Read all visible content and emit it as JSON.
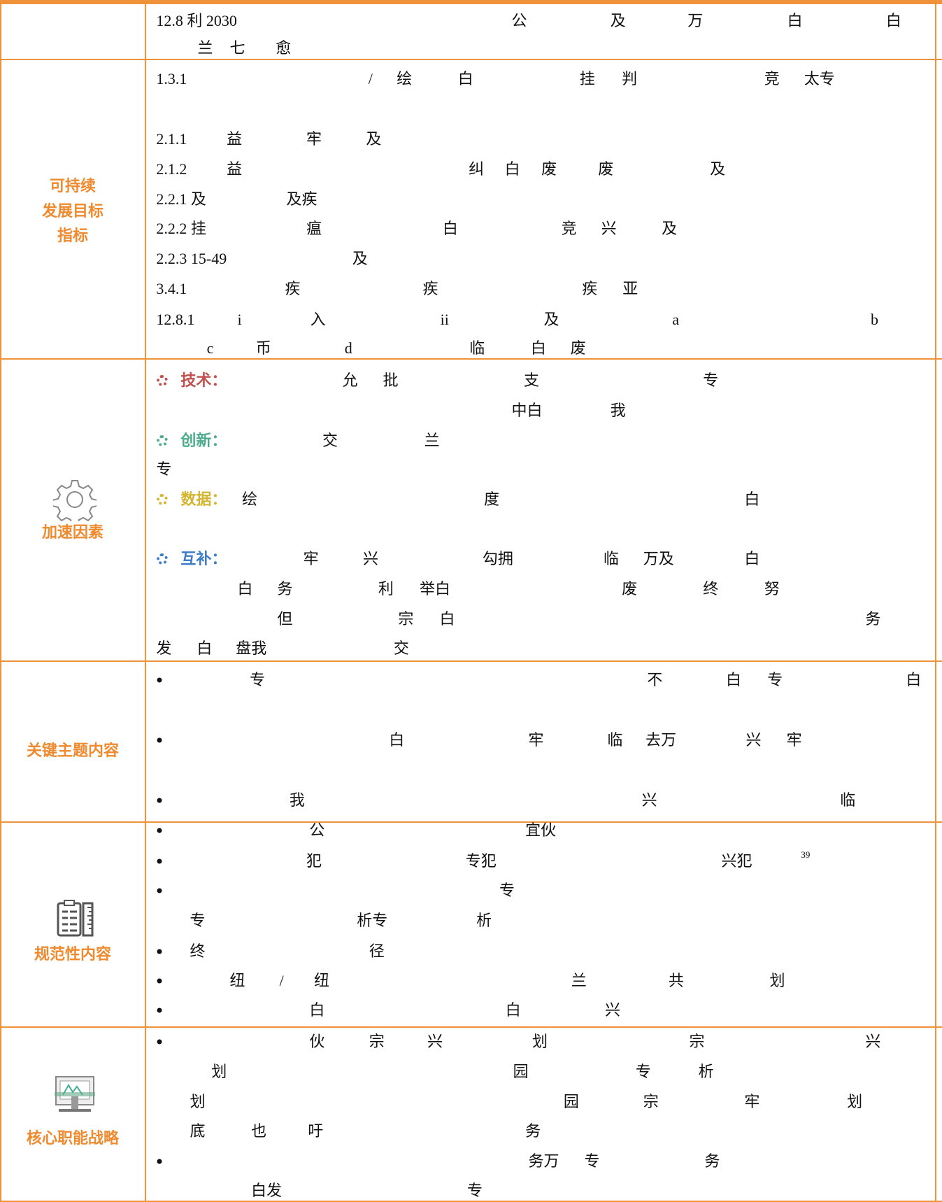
{
  "rows": [
    {
      "lines": [
        [
          "12.8 利 2030",
          "公",
          "及",
          "万",
          "白",
          "白"
        ],
        [
          "兰",
          "七",
          "愈"
        ]
      ]
    },
    {
      "label": [
        "可持续",
        "发展目标",
        "指标"
      ],
      "lines": [
        [
          "1.3.1",
          "/",
          "绘",
          "白",
          "挂",
          "判",
          "竞",
          "太专"
        ],
        [
          "2.1.1",
          "益",
          "牢",
          "及"
        ],
        [
          "2.1.2",
          "益",
          "纠",
          "白",
          "废",
          "废",
          "及"
        ],
        [
          "2.2.1 及",
          "及疾"
        ],
        [
          "2.2.2 挂",
          "瘟",
          "白",
          "竞",
          "兴",
          "及"
        ],
        [
          "2.2.3 15-49",
          "及"
        ],
        [
          "3.4.1",
          "疾",
          "疾",
          "疾",
          "亚"
        ],
        [
          "12.8.1",
          "i",
          "入",
          "ii",
          "及",
          "a",
          "b"
        ],
        [
          "c",
          "币",
          "d",
          "临",
          "白",
          "废"
        ]
      ]
    },
    {
      "label": [
        "加速因素"
      ],
      "lines": [
        [
          "技术：",
          "允",
          "批",
          "支",
          "专"
        ],
        [
          "中白",
          "我"
        ],
        [
          "创新：",
          "交",
          "兰"
        ],
        [
          "专"
        ],
        [
          "数据：",
          "绘",
          "度",
          "白"
        ],
        [
          "互补：",
          "牢",
          "兴",
          "勾拥",
          "临",
          "万及",
          "白"
        ],
        [
          "白",
          "务",
          "利",
          "举白",
          "废",
          "终",
          "努"
        ],
        [
          "但",
          "宗",
          "白",
          "务"
        ],
        [
          "发",
          "白",
          "盘我",
          "交"
        ]
      ]
    },
    {
      "label": [
        "关键主题内容"
      ],
      "lines": [
        [
          "专",
          "不",
          "白",
          "专",
          "白"
        ],
        [
          "白",
          "牢",
          "临",
          "去万",
          "兴",
          "牢"
        ],
        [
          "我",
          "兴",
          "临"
        ],
        [
          "公",
          "宜伙"
        ]
      ]
    },
    {
      "label": [
        "规范性内容"
      ],
      "lines": [
        [
          "犯",
          "专犯",
          "兴犯",
          "39"
        ],
        [
          "专"
        ],
        [
          "专",
          "析专",
          "析"
        ],
        [
          "终",
          "径"
        ],
        [
          "纽",
          "/",
          "纽",
          "兰",
          "共",
          "划"
        ],
        [
          "白",
          "白",
          "兴"
        ]
      ]
    },
    {
      "label": [
        "核心职能战略"
      ],
      "lines": [
        [
          "伙",
          "宗",
          "兴",
          "划",
          "宗",
          "兴"
        ],
        [
          "划",
          "园",
          "专",
          "析"
        ],
        [
          "划",
          "园",
          "宗",
          "牢",
          "划"
        ],
        [
          "底",
          "也",
          "吁",
          "务"
        ],
        [
          "务万",
          "专",
          "务"
        ],
        [
          "白发",
          "专"
        ]
      ]
    }
  ]
}
